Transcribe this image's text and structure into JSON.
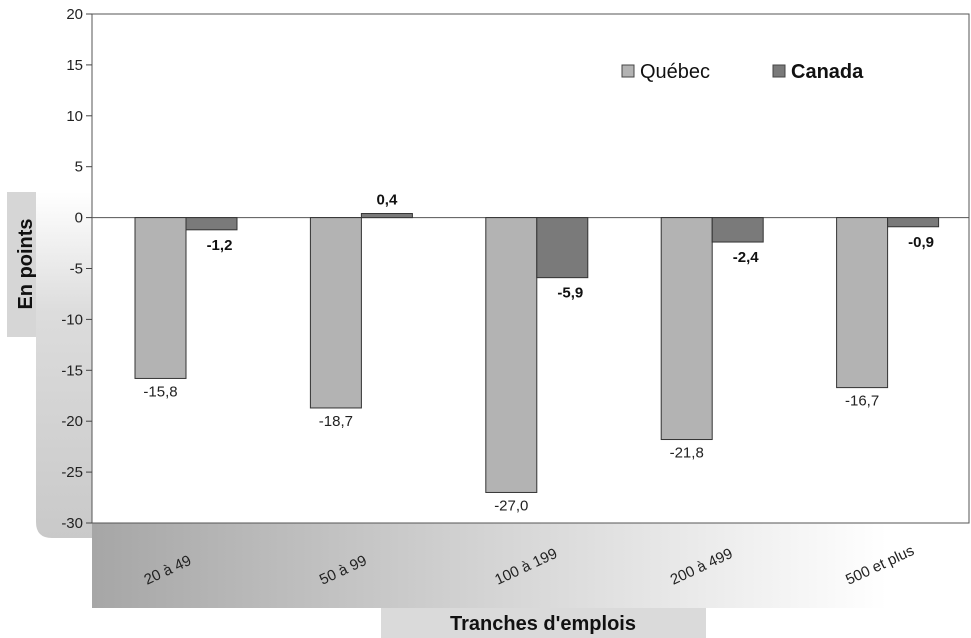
{
  "chart_data": {
    "type": "bar",
    "categories": [
      "20 à 49",
      "50 à 99",
      "100 à 199",
      "200 à 499",
      "500 et plus"
    ],
    "series": [
      {
        "name": "Québec",
        "values": [
          -15.8,
          -18.7,
          -27.0,
          -21.8,
          -16.7
        ],
        "labels": [
          "-15,8",
          "-18,7",
          "-27,0",
          "-21,8",
          "-16,7"
        ],
        "color": "#b3b3b3"
      },
      {
        "name": "Canada",
        "values": [
          -1.2,
          0.4,
          -5.9,
          -2.4,
          -0.9
        ],
        "labels": [
          "-1,2",
          "0,4",
          "-5,9",
          "-2,4",
          "-0,9"
        ],
        "color": "#7a7a7a"
      }
    ],
    "ylim": [
      -30,
      20
    ],
    "yticks": [
      20,
      15,
      10,
      5,
      0,
      -5,
      -10,
      -15,
      -20,
      -25,
      -30
    ],
    "ylabel": "En points",
    "xlabel": "Tranches d'emplois",
    "legend_position": "top-right",
    "grid": false
  }
}
